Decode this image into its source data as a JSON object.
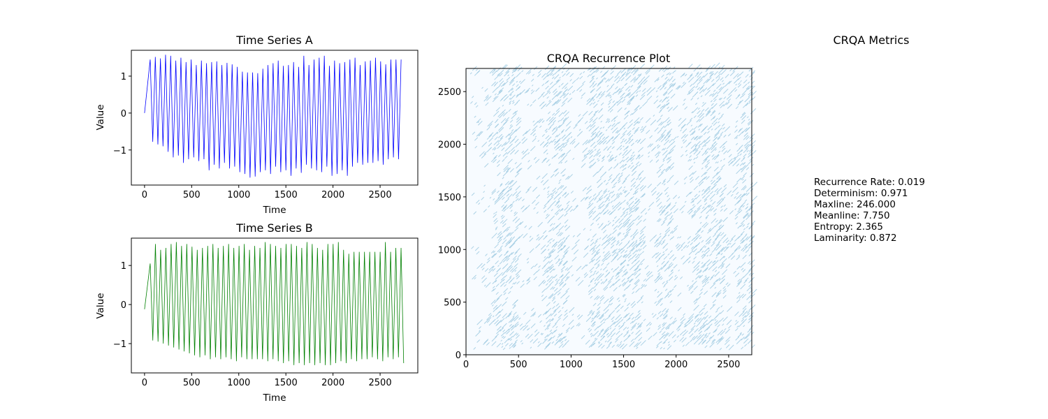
{
  "chart_data": [
    {
      "type": "line",
      "title": "Time Series A",
      "xlabel": "Time",
      "ylabel": "Value",
      "xlim": [
        -140,
        2900
      ],
      "ylim": [
        -1.95,
        1.7
      ],
      "xticks": [
        0,
        500,
        1000,
        1500,
        2000,
        2500
      ],
      "yticks": [
        -1,
        0,
        1
      ],
      "color": "#0000ff",
      "series": [
        {
          "start_x": 0,
          "start_y": 0.0,
          "x_end": 2750,
          "peaks": [
            1.45,
            1.52,
            1.48,
            1.58,
            1.55,
            1.42,
            1.5,
            1.38,
            1.45,
            1.3,
            1.42,
            1.35,
            1.38,
            1.4,
            1.3,
            1.36,
            1.32,
            1.25,
            1.12,
            1.1,
            1.1,
            1.08,
            1.2,
            1.3,
            1.35,
            1.42,
            1.28,
            1.3,
            1.38,
            1.25,
            1.55,
            1.3,
            1.45,
            1.5,
            1.55,
            1.28,
            1.42,
            1.35,
            1.38,
            1.45,
            1.5,
            1.3,
            1.4,
            1.42,
            1.5,
            1.4,
            1.32,
            1.45,
            1.45,
            1.45
          ],
          "troughs": [
            -0.78,
            -0.85,
            -0.9,
            -1.05,
            -1.2,
            -1.15,
            -1.35,
            -1.25,
            -1.2,
            -1.3,
            -1.25,
            -1.55,
            -1.4,
            -1.5,
            -1.35,
            -1.5,
            -1.45,
            -1.6,
            -1.65,
            -1.75,
            -1.72,
            -1.6,
            -1.55,
            -1.65,
            -1.45,
            -1.6,
            -1.55,
            -1.7,
            -1.5,
            -1.62,
            -1.4,
            -1.5,
            -1.55,
            -1.6,
            -1.45,
            -1.7,
            -1.65,
            -1.55,
            -1.7,
            -1.45,
            -1.35,
            -1.4,
            -1.35,
            -1.35,
            -1.3,
            -1.4,
            -1.25,
            -1.2,
            -1.25
          ]
        }
      ]
    },
    {
      "type": "line",
      "title": "Time Series B",
      "xlabel": "Time",
      "ylabel": "Value",
      "xlim": [
        -140,
        2900
      ],
      "ylim": [
        -1.75,
        1.7
      ],
      "xticks": [
        0,
        500,
        1000,
        1500,
        2000,
        2500
      ],
      "yticks": [
        -1,
        0,
        1
      ],
      "color": "#008000",
      "series": [
        {
          "start_x": 0,
          "start_y": -0.12,
          "x_end": 2750,
          "peaks": [
            1.05,
            1.55,
            1.4,
            1.45,
            1.55,
            1.6,
            1.5,
            1.55,
            1.48,
            1.4,
            1.45,
            1.5,
            1.55,
            1.45,
            1.5,
            1.55,
            1.45,
            1.5,
            1.55,
            1.4,
            1.5,
            1.45,
            1.6,
            1.55,
            1.5,
            1.45,
            1.55,
            1.55,
            1.5,
            1.45,
            1.6,
            1.55,
            1.45,
            1.4,
            1.55,
            1.55,
            1.6,
            1.4,
            1.3,
            1.35,
            1.35,
            1.35,
            1.35,
            1.35,
            1.35,
            1.6,
            1.35,
            1.45,
            1.45
          ],
          "troughs": [
            -0.92,
            -0.95,
            -1.0,
            -1.05,
            -1.1,
            -1.15,
            -1.2,
            -1.25,
            -1.3,
            -1.35,
            -1.3,
            -1.4,
            -1.35,
            -1.4,
            -1.35,
            -1.4,
            -1.45,
            -1.35,
            -1.4,
            -1.4,
            -1.4,
            -1.4,
            -1.45,
            -1.4,
            -1.45,
            -1.5,
            -1.45,
            -1.55,
            -1.5,
            -1.55,
            -1.5,
            -1.55,
            -1.5,
            -1.55,
            -1.55,
            -1.5,
            -1.45,
            -1.5,
            -1.4,
            -1.45,
            -1.4,
            -1.4,
            -1.35,
            -1.4,
            -1.45,
            -1.35,
            -1.4,
            -1.35,
            -1.5
          ]
        }
      ]
    },
    {
      "type": "heatmap",
      "title": "CRQA Recurrence Plot",
      "xlim": [
        0,
        2720
      ],
      "ylim": [
        0,
        2720
      ],
      "xticks": [
        0,
        500,
        1000,
        1500,
        2000,
        2500
      ],
      "yticks": [
        0,
        500,
        1000,
        1500,
        2000,
        2500
      ],
      "background_color": "#f7fbff",
      "point_color": "#9ecae1",
      "dense_x_bands": [
        [
          230,
          450
        ],
        [
          700,
          950
        ],
        [
          1150,
          1650
        ],
        [
          1790,
          1930
        ],
        [
          2100,
          2430
        ],
        [
          2550,
          2720
        ]
      ],
      "dense_y_bands": [
        [
          50,
          350
        ],
        [
          600,
          1100
        ],
        [
          1300,
          1550
        ],
        [
          1800,
          2200
        ],
        [
          2350,
          2720
        ]
      ]
    }
  ],
  "metrics": {
    "title": "CRQA Metrics",
    "lines": [
      "Recurrence Rate: 0.019",
      "Determinism: 0.971",
      "Maxline: 246.000",
      "Meanline: 7.750",
      "Entropy: 2.365",
      "Laminarity: 0.872"
    ]
  }
}
